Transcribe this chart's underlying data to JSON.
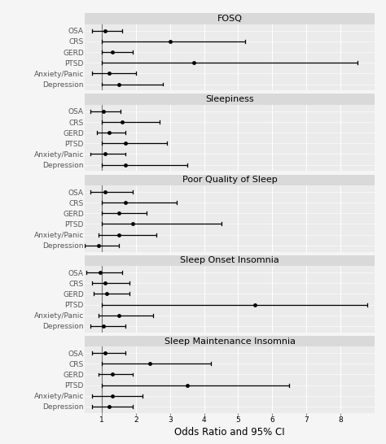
{
  "panels": [
    {
      "title": "FOSQ",
      "categories": [
        "OSA",
        "CRS",
        "GERD",
        "PTSD",
        "Anxiety/Panic",
        "Depression"
      ],
      "estimates": [
        1.1,
        3.0,
        1.3,
        3.7,
        1.2,
        1.5
      ],
      "ci_low": [
        0.7,
        1.0,
        1.0,
        1.0,
        0.7,
        1.0
      ],
      "ci_high": [
        1.6,
        5.2,
        1.9,
        8.5,
        2.0,
        2.8
      ]
    },
    {
      "title": "Sleepiness",
      "categories": [
        "OSA",
        "CRS",
        "GERD",
        "PTSD",
        "Anxiety/Panic",
        "Depression"
      ],
      "estimates": [
        1.05,
        1.6,
        1.2,
        1.7,
        1.1,
        1.7
      ],
      "ci_low": [
        0.65,
        1.0,
        0.85,
        1.0,
        0.65,
        1.0
      ],
      "ci_high": [
        1.55,
        2.7,
        1.7,
        2.9,
        1.7,
        3.5
      ]
    },
    {
      "title": "Poor Quality of Sleep",
      "categories": [
        "OSA",
        "CRS",
        "GERD",
        "PTSD",
        "Anxiety/Panic",
        "Depression"
      ],
      "estimates": [
        1.1,
        1.7,
        1.5,
        1.9,
        1.5,
        0.9
      ],
      "ci_low": [
        0.65,
        1.0,
        1.0,
        1.0,
        0.9,
        0.5
      ],
      "ci_high": [
        1.9,
        3.2,
        2.3,
        4.5,
        2.6,
        1.5
      ]
    },
    {
      "title": "Sleep Onset Insomnia",
      "categories": [
        "OSA",
        "CRS",
        "GERD",
        "PTSD",
        "Anxiety/Panic",
        "Depression"
      ],
      "estimates": [
        0.95,
        1.1,
        1.15,
        5.5,
        1.5,
        1.05
      ],
      "ci_low": [
        0.55,
        0.7,
        0.75,
        1.0,
        0.9,
        0.65
      ],
      "ci_high": [
        1.6,
        1.8,
        1.8,
        8.8,
        2.5,
        1.7
      ]
    },
    {
      "title": "Sleep Maintenance Insomnia",
      "categories": [
        "OSA",
        "CRS",
        "GERD",
        "PTSD",
        "Anxiety/Panic",
        "Depression"
      ],
      "estimates": [
        1.1,
        2.4,
        1.3,
        3.5,
        1.3,
        1.2
      ],
      "ci_low": [
        0.7,
        1.0,
        0.9,
        1.0,
        0.7,
        0.7
      ],
      "ci_high": [
        1.7,
        4.2,
        1.9,
        6.5,
        2.2,
        1.9
      ]
    }
  ],
  "xlim": [
    0.5,
    9.0
  ],
  "xticks": [
    1,
    2,
    3,
    4,
    5,
    6,
    7,
    8
  ],
  "xlabel": "Odds Ratio and 95% CI",
  "vline_x": 1.0,
  "panel_bg": "#ebebeb",
  "title_strip_bg": "#d9d9d9",
  "outer_bg": "#f5f5f5",
  "dot_color": "black",
  "line_color": "black",
  "dot_size": 3.5,
  "label_fontsize": 6.5,
  "title_fontsize": 8,
  "xlabel_fontsize": 8.5,
  "tick_fontsize": 6.5,
  "label_color": "#555555"
}
